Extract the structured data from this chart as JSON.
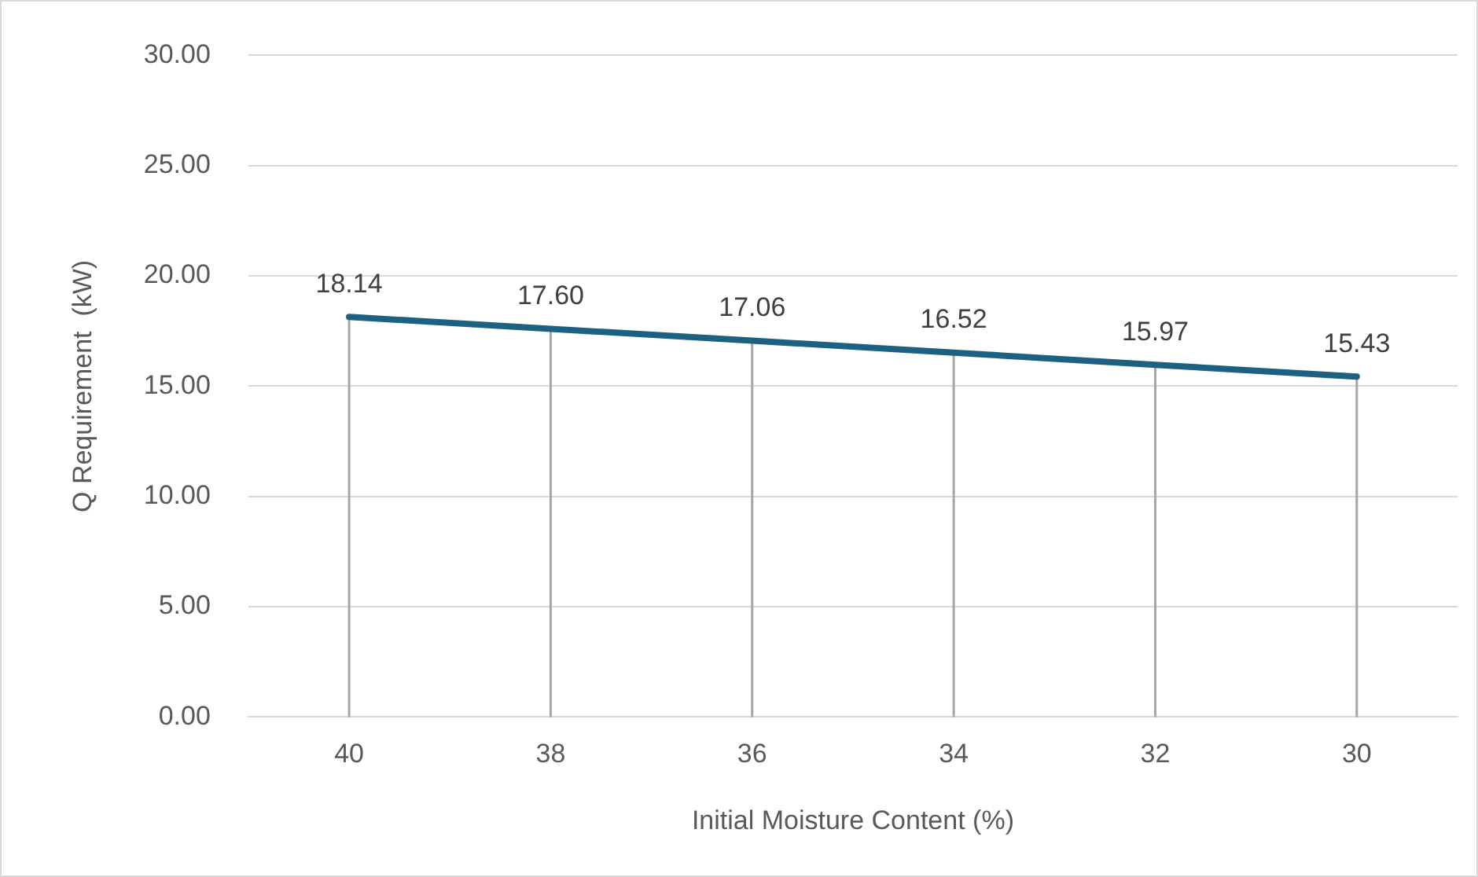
{
  "chart_data": {
    "type": "line",
    "xlabel": "Initial Moisture Content (%)",
    "ylabel": "Q Requirement  (kW)",
    "categories": [
      "40",
      "38",
      "36",
      "34",
      "32",
      "30"
    ],
    "series": [
      {
        "color": "#1d6080",
        "values": [
          18.14,
          17.6,
          17.06,
          16.52,
          15.97,
          15.43
        ]
      }
    ],
    "ylim": [
      0,
      30
    ],
    "yticks": [
      {
        "value": 0,
        "label": "0.00"
      },
      {
        "value": 5,
        "label": "5.00"
      },
      {
        "value": 10,
        "label": "10.00"
      },
      {
        "value": 15,
        "label": "15.00"
      },
      {
        "value": 20,
        "label": "20.00"
      },
      {
        "value": 25,
        "label": "25.00"
      },
      {
        "value": 30,
        "label": "30.00"
      }
    ],
    "grid": "y",
    "legend": false,
    "marker": "none",
    "line_style": "solid",
    "value_labels": [
      "18.14",
      "17.60",
      "17.06",
      "16.52",
      "15.97",
      "15.43"
    ]
  }
}
